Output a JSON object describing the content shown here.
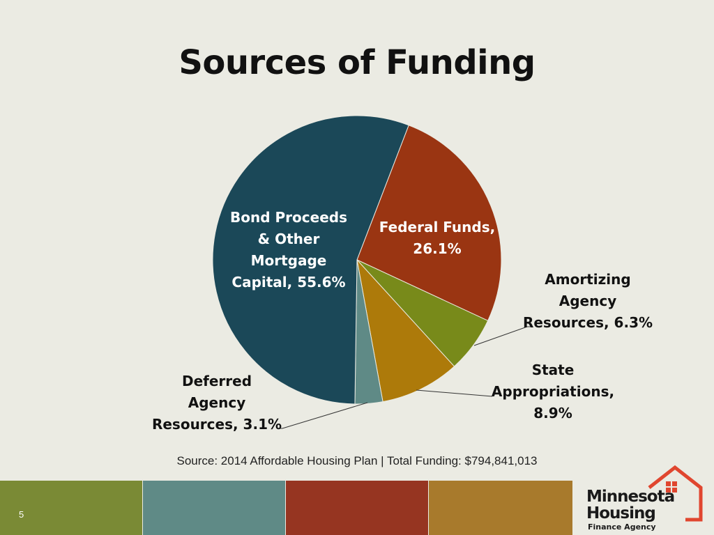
{
  "title": "Sources of Funding",
  "source_note": "Source: 2014 Affordable Housing Plan | Total Funding: $794,841,013",
  "slide_number": "5",
  "logo": {
    "line1": "Minnesota",
    "line2": "Housing",
    "line3": "Finance Agency",
    "icon": "house-icon",
    "accent_color": "#e0462f"
  },
  "footer_colors": [
    "#7a8a35",
    "#5f8a86",
    "#963521",
    "#a87a2c"
  ],
  "chart_data": {
    "type": "pie",
    "title": "Sources of Funding",
    "slices": [
      {
        "lines": [
          "Federal Funds,",
          "26.1%"
        ],
        "value": 26.1,
        "color": "#9a3512"
      },
      {
        "lines": [
          "Amortizing",
          "Agency",
          "Resources, 6.3%"
        ],
        "value": 6.3,
        "color": "#788a1a"
      },
      {
        "lines": [
          "State",
          "Appropriations,",
          "8.9%"
        ],
        "value": 8.9,
        "color": "#ad7a0a"
      },
      {
        "lines": [
          "Deferred",
          "Agency",
          "Resources, 3.1%"
        ],
        "value": 3.1,
        "color": "#5f8a86"
      },
      {
        "lines": [
          "Bond Proceeds",
          "& Other",
          "Mortgage",
          "Capital, 55.6%"
        ],
        "value": 55.6,
        "color": "#1b4858"
      }
    ]
  }
}
